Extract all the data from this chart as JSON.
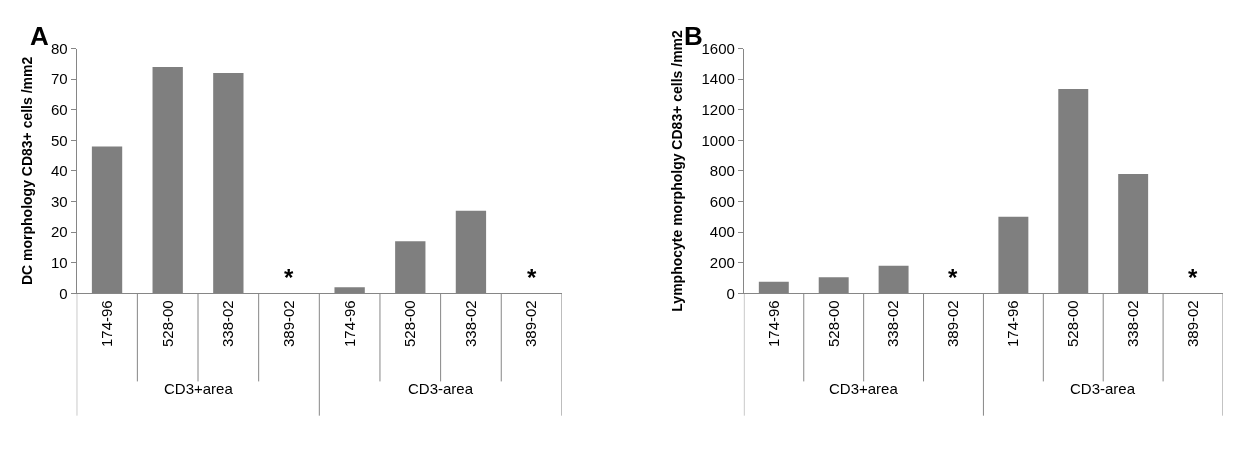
{
  "chart_data": [
    {
      "type": "bar",
      "title": "A",
      "ylabel": "DC morphology CD83+ cells /mm2",
      "categories": [
        "174-96",
        "528-00",
        "338-02",
        "389-02",
        "174-96",
        "528-00",
        "338-02",
        "389-02"
      ],
      "values": [
        48,
        74,
        72,
        null,
        2,
        17,
        27,
        null
      ],
      "color": "#7f7f7f",
      "ylim": [
        0,
        80
      ],
      "yticks": [
        0,
        10,
        20,
        30,
        40,
        50,
        60,
        70,
        80
      ],
      "annotations": [
        "CD3+area",
        "CD3-area",
        "*",
        "*"
      ]
    },
    {
      "type": "bar",
      "title": "B",
      "ylabel": "Lymphocyte morpholgy CD83+ cells /mm2",
      "categories": [
        "174-96",
        "528-00",
        "338-02",
        "389-02",
        "174-96",
        "528-00",
        "338-02",
        "389-02"
      ],
      "values": [
        75,
        105,
        180,
        null,
        500,
        1335,
        780,
        null
      ],
      "color": "#7f7f7f",
      "ylim": [
        0,
        1600
      ],
      "yticks": [
        0,
        200,
        400,
        600,
        800,
        1000,
        1200,
        1400,
        1600
      ],
      "annotations": [
        "CD3+area",
        "CD3-area",
        "*",
        "*"
      ]
    }
  ]
}
